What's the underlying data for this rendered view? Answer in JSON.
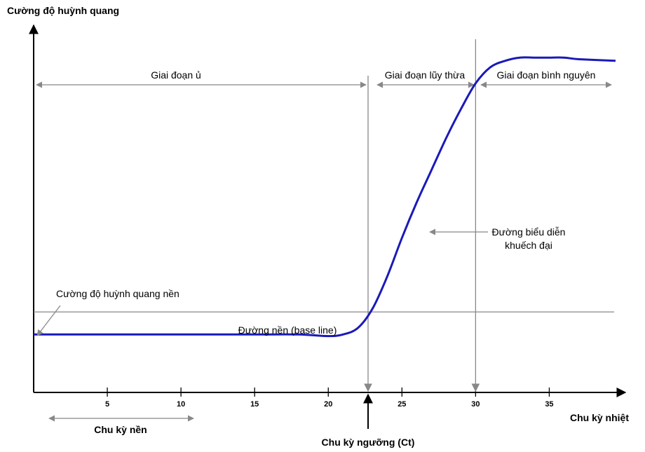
{
  "y_axis_title": "Cường độ huỳnh quang",
  "x_axis_title": "Chu kỳ nhiệt",
  "x_ticks": [
    5,
    10,
    15,
    20,
    25,
    30,
    35
  ],
  "phases": {
    "lag": "Giai đoạn ủ",
    "exponential": "Giai đoạn lũy thừa",
    "plateau": "Giai đoạn bình nguyên"
  },
  "annotations": {
    "curve_line1": "Đường biểu diễn",
    "curve_line2": "khuếch đại",
    "background_fluorescence": "Cường độ huỳnh quang nền",
    "baseline": "Đường nền (base line)",
    "background_cycles": "Chu kỳ nền",
    "threshold_cycle": "Chu kỳ ngưỡng (Ct)"
  },
  "colors": {
    "curve": "#1a1ab8",
    "guide": "#888888",
    "axis": "#000000"
  },
  "chart_data": {
    "type": "line",
    "x": [
      0,
      5,
      10,
      15,
      18,
      20,
      21,
      22,
      23,
      24,
      25,
      26,
      27,
      28,
      29,
      30,
      31,
      32,
      33,
      34,
      35,
      36,
      37,
      39.5
    ],
    "y": [
      0.12,
      0.12,
      0.12,
      0.12,
      0.12,
      0.115,
      0.12,
      0.14,
      0.2,
      0.3,
      0.42,
      0.53,
      0.63,
      0.73,
      0.82,
      0.9,
      0.95,
      0.97,
      0.98,
      0.98,
      0.98,
      0.98,
      0.975,
      0.97
    ],
    "baseline_y": 0.19,
    "threshold_cycle": 22.7,
    "plateau_start": 30,
    "xlim": [
      0,
      39.5
    ],
    "ylim": [
      -0.06,
      1.05
    ]
  }
}
